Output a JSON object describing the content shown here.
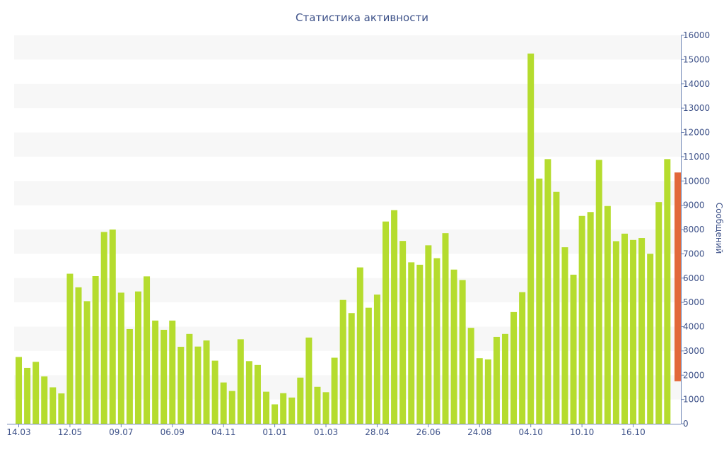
{
  "chart_data": {
    "type": "bar",
    "title": "Статистика активности",
    "ylabel": "Сообщений",
    "ylim": [
      0,
      16000
    ],
    "y_ticks": [
      0,
      1000,
      2000,
      3000,
      4000,
      5000,
      6000,
      7000,
      8000,
      9000,
      10000,
      11000,
      12000,
      13000,
      14000,
      15000,
      16000
    ],
    "x_tick_labels": [
      {
        "label": "14.03",
        "index": 0
      },
      {
        "label": "12.05",
        "index": 6
      },
      {
        "label": "09.07",
        "index": 12
      },
      {
        "label": "06.09",
        "index": 18
      },
      {
        "label": "04.11",
        "index": 24
      },
      {
        "label": "01.01",
        "index": 30
      },
      {
        "label": "01.03",
        "index": 36
      },
      {
        "label": "28.04",
        "index": 42
      },
      {
        "label": "26.06",
        "index": 48
      },
      {
        "label": "24.08",
        "index": 54
      },
      {
        "label": "04.10",
        "index": 60
      },
      {
        "label": "10.10",
        "index": 66
      },
      {
        "label": "16.10",
        "index": 72
      }
    ],
    "values": [
      2750,
      2300,
      2550,
      1950,
      1500,
      1250,
      6180,
      5620,
      5050,
      6080,
      7900,
      8000,
      5400,
      3900,
      5450,
      6070,
      4250,
      3870,
      4250,
      3170,
      3700,
      3180,
      3430,
      2600,
      1700,
      1350,
      3480,
      2580,
      2420,
      1320,
      800,
      1260,
      1080,
      1900,
      3550,
      1520,
      1300,
      2720,
      5100,
      4560,
      6440,
      4780,
      5320,
      8330,
      8800,
      7530,
      6650,
      6550,
      7350,
      6820,
      7850,
      6350,
      5920,
      3950,
      2700,
      2650,
      3580,
      3700,
      4600,
      5420,
      15250,
      10100,
      10900,
      9550,
      7270,
      6140,
      8560,
      8720,
      10870,
      8970,
      7520,
      7830,
      7570,
      7650,
      7000,
      9130,
      10900
    ],
    "current_value": {
      "low": 1750,
      "high": 10350
    },
    "colors": {
      "bar": "#b5dc2e",
      "current": "#e2683a",
      "band": "#f7f7f7",
      "axis": "#6f85b5",
      "text": "#3e5289"
    },
    "grid": "alternating horizontal bands",
    "y_axis_side": "right"
  }
}
